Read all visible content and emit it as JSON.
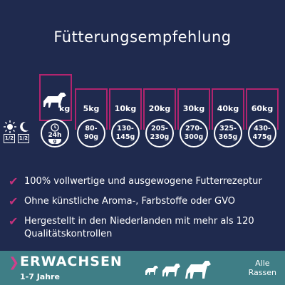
{
  "title": "Fütterungsempfehlung",
  "weight_unit": "kg",
  "day_fraction": {
    "time": "24h",
    "portion_a": "1/2",
    "portion_b": "1/2",
    "scoop": "g"
  },
  "weights": [
    {
      "kg": "5kg",
      "grams_line1": "80-",
      "grams_line2": "90g"
    },
    {
      "kg": "10kg",
      "grams_line1": "130-",
      "grams_line2": "145g"
    },
    {
      "kg": "20kg",
      "grams_line1": "205-",
      "grams_line2": "230g"
    },
    {
      "kg": "30kg",
      "grams_line1": "270-",
      "grams_line2": "300g"
    },
    {
      "kg": "40kg",
      "grams_line1": "325-",
      "grams_line2": "365g"
    },
    {
      "kg": "60kg",
      "grams_line1": "430-",
      "grams_line2": "475g"
    }
  ],
  "features": [
    "100% vollwertige und ausgewogene Futterrezeptur",
    "Ohne künstliche Aroma-, Farbstoffe oder GVO",
    "Hergestellt in den Niederlanden mit mehr als 120 Qualitätskontrollen"
  ],
  "banner": {
    "stage": "ERWACHSEN",
    "age": "1-7 Jahre",
    "breeds_line1": "Alle",
    "breeds_line2": "Rassen"
  },
  "colors": {
    "background": "#1f2a4e",
    "accent": "#b1246e",
    "check": "#c4317c",
    "banner": "#3f7e86"
  }
}
